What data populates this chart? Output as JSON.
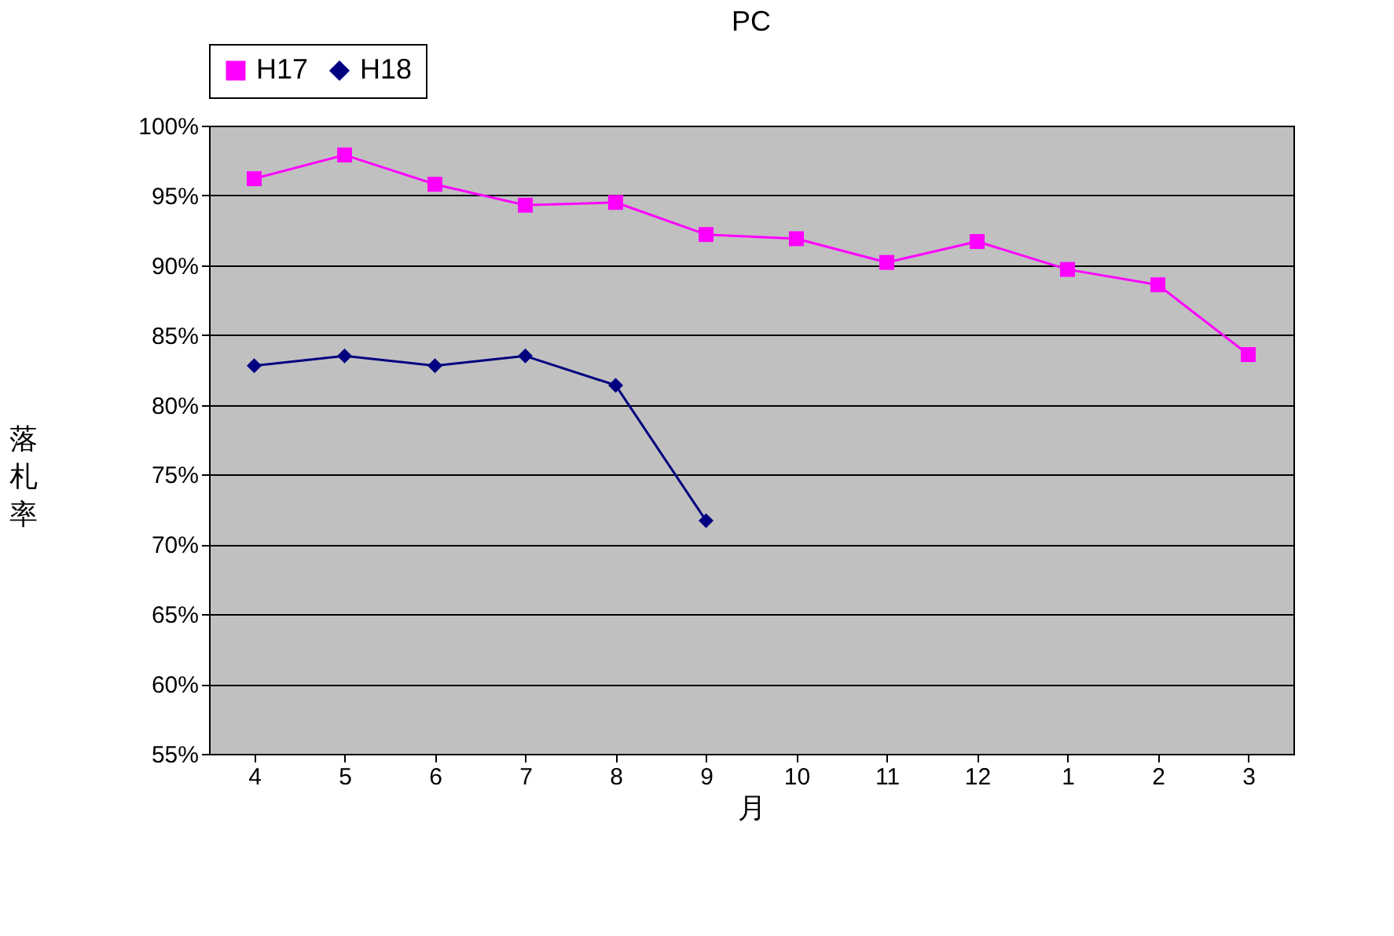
{
  "chart_data": {
    "type": "line",
    "title": "PC",
    "xlabel": "月",
    "ylabel": "落札率",
    "categories": [
      "4",
      "5",
      "6",
      "7",
      "8",
      "9",
      "10",
      "11",
      "12",
      "1",
      "2",
      "3"
    ],
    "series": [
      {
        "name": "H17",
        "color": "#ff00ff",
        "marker": "square",
        "values": [
          96.2,
          97.9,
          95.8,
          94.3,
          94.5,
          92.2,
          91.9,
          90.2,
          91.7,
          89.7,
          88.6,
          83.6
        ]
      },
      {
        "name": "H18",
        "color": "#000080",
        "marker": "diamond",
        "values": [
          82.8,
          83.5,
          82.8,
          83.5,
          81.4,
          71.7,
          null,
          null,
          null,
          null,
          null,
          null
        ]
      }
    ],
    "ylim": [
      55,
      100
    ],
    "yticks": [
      {
        "value": 55,
        "label": "55%"
      },
      {
        "value": 60,
        "label": "60%"
      },
      {
        "value": 65,
        "label": "65%"
      },
      {
        "value": 70,
        "label": "70%"
      },
      {
        "value": 75,
        "label": "75%"
      },
      {
        "value": 80,
        "label": "80%"
      },
      {
        "value": 85,
        "label": "85%"
      },
      {
        "value": 90,
        "label": "90%"
      },
      {
        "value": 95,
        "label": "95%"
      },
      {
        "value": 100,
        "label": "100%"
      }
    ],
    "grid": "y",
    "legend": "top",
    "line_style": "solid"
  }
}
